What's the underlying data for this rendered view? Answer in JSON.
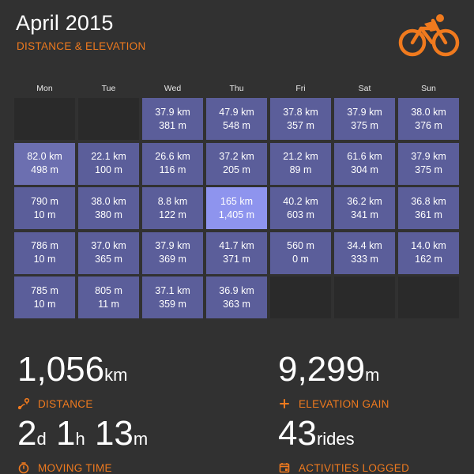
{
  "header": {
    "title": "April 2015",
    "subtitle": "DISTANCE & ELEVATION",
    "logo_icon": "cyclist-icon"
  },
  "calendar": {
    "days": [
      "Mon",
      "Tue",
      "Wed",
      "Thu",
      "Fri",
      "Sat",
      "Sun"
    ],
    "weeks": [
      [
        {
          "empty": true
        },
        {
          "empty": true
        },
        {
          "d": "37.9 km",
          "e": "381 m"
        },
        {
          "d": "47.9 km",
          "e": "548 m"
        },
        {
          "d": "37.8 km",
          "e": "357 m"
        },
        {
          "d": "37.9 km",
          "e": "375 m"
        },
        {
          "d": "38.0 km",
          "e": "376 m"
        }
      ],
      [
        {
          "d": "82.0 km",
          "e": "498 m",
          "tone": "lighter"
        },
        {
          "d": "22.1 km",
          "e": "100 m"
        },
        {
          "d": "26.6 km",
          "e": "116 m"
        },
        {
          "d": "37.2 km",
          "e": "205 m"
        },
        {
          "d": "21.2 km",
          "e": "89 m"
        },
        {
          "d": "61.6 km",
          "e": "304 m"
        },
        {
          "d": "37.9 km",
          "e": "375 m"
        }
      ],
      [
        {
          "d": "790 m",
          "e": "10 m"
        },
        {
          "d": "38.0 km",
          "e": "380 m"
        },
        {
          "d": "8.8 km",
          "e": "122 m"
        },
        {
          "d": "165 km",
          "e": "1,405 m",
          "tone": "highlight"
        },
        {
          "d": "40.2 km",
          "e": "603 m"
        },
        {
          "d": "36.2 km",
          "e": "341 m"
        },
        {
          "d": "36.8 km",
          "e": "361 m"
        }
      ],
      [
        {
          "d": "786 m",
          "e": "10 m"
        },
        {
          "d": "37.0 km",
          "e": "365 m"
        },
        {
          "d": "37.9 km",
          "e": "369 m"
        },
        {
          "d": "41.7 km",
          "e": "371 m"
        },
        {
          "d": "560 m",
          "e": "0 m"
        },
        {
          "d": "34.4 km",
          "e": "333 m"
        },
        {
          "d": "14.0 km",
          "e": "162 m"
        }
      ],
      [
        {
          "d": "785 m",
          "e": "10 m"
        },
        {
          "d": "805 m",
          "e": "11 m"
        },
        {
          "d": "37.1 km",
          "e": "359 m"
        },
        {
          "d": "36.9 km",
          "e": "363 m"
        },
        {
          "empty": true
        },
        {
          "empty": true
        },
        {
          "empty": true
        }
      ]
    ]
  },
  "stats": {
    "distance": {
      "value": "1,056",
      "unit": "km",
      "label": "DISTANCE",
      "icon": "route-pin-icon"
    },
    "elevation": {
      "value": "9,299",
      "unit": "m",
      "label": "ELEVATION GAIN",
      "icon": "plus-icon"
    },
    "moving_time": {
      "d": "2",
      "d_unit": "d",
      "h": "1",
      "h_unit": "h",
      "m": "13",
      "m_unit": "m",
      "label": "MOVING TIME",
      "icon": "stopwatch-icon"
    },
    "activities": {
      "value": "43",
      "unit": "rides",
      "label": "ACTIVITIES LOGGED",
      "icon": "calendar-icon"
    }
  },
  "colors": {
    "accent": "#f07a1e",
    "background": "#313131",
    "cell": "#5b5e9a",
    "cell_highlight": "#8e94ee",
    "cell_empty": "#2a2a2a"
  }
}
